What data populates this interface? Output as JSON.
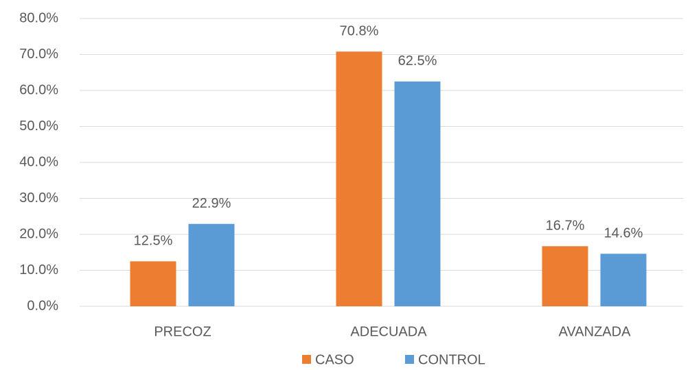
{
  "chart_data": {
    "type": "bar",
    "categories": [
      "PRECOZ",
      "ADECUADA",
      "AVANZADA"
    ],
    "series": [
      {
        "name": "CASO",
        "color": "#ED7D31",
        "values": [
          12.5,
          70.8,
          16.7
        ],
        "value_labels": [
          "12.5%",
          "70.8%",
          "16.7%"
        ]
      },
      {
        "name": "CONTROL",
        "color": "#5B9BD5",
        "values": [
          22.9,
          62.5,
          14.6
        ],
        "value_labels": [
          "22.9%",
          "62.5%",
          "14.6%"
        ]
      }
    ],
    "ylim": [
      0,
      80
    ],
    "yticks": [
      {
        "value": 0,
        "label": "0.0%"
      },
      {
        "value": 10,
        "label": "10.0%"
      },
      {
        "value": 20,
        "label": "20.0%"
      },
      {
        "value": 30,
        "label": "30.0%"
      },
      {
        "value": 40,
        "label": "40.0%"
      },
      {
        "value": 50,
        "label": "50.0%"
      },
      {
        "value": 60,
        "label": "60.0%"
      },
      {
        "value": 70,
        "label": "70.0%"
      },
      {
        "value": 80,
        "label": "80.0%"
      }
    ],
    "grid": true,
    "legend": "bottom"
  }
}
